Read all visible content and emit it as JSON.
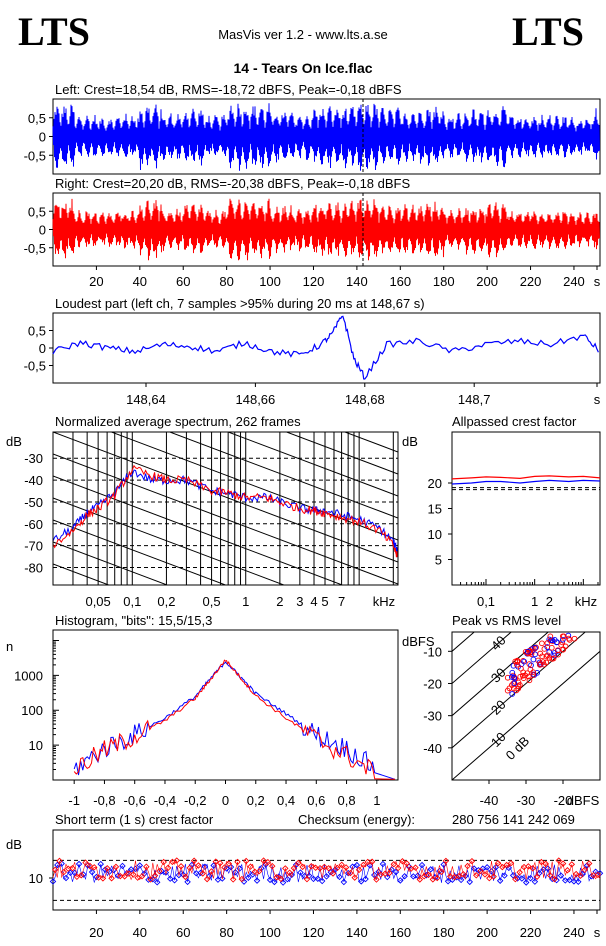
{
  "header": {
    "logo_left": "LTS",
    "logo_right": "LTS",
    "app_title": "MasVis ver 1.2 - www.lts.a.se",
    "file_name": "14 - Tears On Ice.flac"
  },
  "colors": {
    "left": "#0000ff",
    "right": "#ff0000",
    "axis": "#000000"
  },
  "chart_data": [
    {
      "type": "line",
      "id": "left-waveform",
      "title": "Left: Crest=18,54 dB, RMS=-18,72 dBFS, Peak=-0,18 dBFS",
      "crest_db": 18.54,
      "rms_dbfs": -18.72,
      "peak_dbfs": -0.18,
      "ylim": [
        -1,
        1
      ],
      "yticks": [
        "0,5",
        "0",
        "-0,5"
      ],
      "xlim": [
        0,
        252
      ],
      "xunit": "s",
      "envelope_by_10s": [
        0.9,
        0.6,
        0.55,
        0.65,
        0.9,
        0.65,
        0.8,
        0.6,
        0.95,
        0.9,
        0.75,
        0.65,
        0.85,
        0.85,
        0.95,
        0.8,
        0.75,
        0.85,
        0.65,
        0.75,
        0.85,
        0.6,
        0.6,
        0.6,
        0.55,
        0.9
      ]
    },
    {
      "type": "line",
      "id": "right-waveform",
      "title": "Right: Crest=20,20 dB, RMS=-20,38 dBFS, Peak=-0,18 dBFS",
      "crest_db": 20.2,
      "rms_dbfs": -20.38,
      "peak_dbfs": -0.18,
      "ylim": [
        -1,
        1
      ],
      "yticks": [
        "0,5",
        "0",
        "-0,5"
      ],
      "xlim": [
        0,
        252
      ],
      "xunit": "s",
      "xticks": [
        "20",
        "40",
        "60",
        "80",
        "100",
        "120",
        "140",
        "160",
        "180",
        "200",
        "220",
        "240",
        "s"
      ],
      "envelope_by_10s": [
        0.85,
        0.55,
        0.5,
        0.6,
        0.85,
        0.6,
        0.75,
        0.55,
        0.9,
        0.85,
        0.7,
        0.6,
        0.8,
        0.8,
        0.9,
        0.75,
        0.7,
        0.8,
        0.6,
        0.7,
        0.8,
        0.55,
        0.55,
        0.55,
        0.5,
        0.6
      ]
    },
    {
      "type": "line",
      "id": "loudest-part",
      "title": "Loudest part (left  ch, 7 samples >95% during 20 ms at 148,67 s)",
      "ylim": [
        -1,
        1
      ],
      "yticks": [
        "0,5",
        "0",
        "-0,5"
      ],
      "xlim": [
        148.623,
        148.723
      ],
      "xticks": [
        "148,64",
        "148,66",
        "148,68",
        "148,7",
        "s"
      ],
      "x": [
        148.623,
        148.628,
        148.633,
        148.638,
        148.643,
        148.648,
        148.653,
        148.658,
        148.663,
        148.668,
        148.672,
        148.674,
        148.676,
        148.678,
        148.68,
        148.684,
        148.69,
        148.696,
        148.702,
        148.708,
        148.714,
        148.72,
        148.723
      ],
      "y": [
        -0.1,
        0.15,
        0.0,
        -0.1,
        0.1,
        0.05,
        -0.1,
        0.15,
        -0.1,
        -0.2,
        0.1,
        0.4,
        0.95,
        -0.3,
        -0.85,
        0.1,
        0.2,
        -0.1,
        0.1,
        0.2,
        0.1,
        0.35,
        -0.1
      ]
    },
    {
      "type": "line",
      "id": "average-spectrum",
      "title": "Normalized average spectrum, 262 frames",
      "ylabel": "dB",
      "xlabel": "kHz",
      "yticks": [
        "-30",
        "-40",
        "-50",
        "-60",
        "-70",
        "-80"
      ],
      "ylim": [
        -88,
        -18
      ],
      "xscale": "log",
      "xlim": [
        0.02,
        22
      ],
      "xticks": [
        "0,05",
        "0,1",
        "0,2",
        "0,5",
        "1",
        "2",
        "3",
        "4",
        "5",
        "7",
        "kHz"
      ],
      "x": [
        0.02,
        0.03,
        0.04,
        0.05,
        0.07,
        0.1,
        0.15,
        0.2,
        0.3,
        0.5,
        0.7,
        1,
        1.5,
        2,
        3,
        4,
        5,
        7,
        10,
        15,
        20,
        22
      ],
      "series": [
        {
          "name": "",
          "color": "#0000ff",
          "values": [
            -68,
            -62,
            -55,
            -52,
            -46,
            -36,
            -40,
            -40,
            -40,
            -45,
            -46,
            -48,
            -48,
            -50,
            -53,
            -54,
            -54,
            -56,
            -58,
            -62,
            -68,
            -74
          ]
        },
        {
          "name": "",
          "color": "#ff0000",
          "values": [
            -70,
            -63,
            -56,
            -53,
            -47,
            -35,
            -38,
            -40,
            -40,
            -45,
            -46,
            -48,
            -48,
            -50,
            -53,
            -54,
            -55,
            -57,
            -59,
            -63,
            -70,
            -76
          ]
        }
      ]
    },
    {
      "type": "line",
      "id": "allpassed-crest",
      "title": "Allpassed crest factor",
      "ylabel": "dB",
      "xlabel": "kHz",
      "yticks": [
        "20",
        "15",
        "10",
        "5"
      ],
      "ylim": [
        0,
        30
      ],
      "xscale": "log",
      "xlim": [
        0.02,
        22
      ],
      "xticks": [
        "0,1",
        "1",
        "2",
        "kHz"
      ],
      "x": [
        0.02,
        0.05,
        0.1,
        0.2,
        0.5,
        1,
        2,
        5,
        10,
        22
      ],
      "series": [
        {
          "name": "",
          "color": "#0000ff",
          "values": [
            19.8,
            20.0,
            20.3,
            20.3,
            20.0,
            20.3,
            20.5,
            20.3,
            20.5,
            20.4
          ]
        },
        {
          "name": "",
          "color": "#ff0000",
          "values": [
            20.8,
            21.0,
            21.2,
            21.1,
            20.9,
            21.3,
            21.4,
            21.2,
            21.3,
            21.0
          ]
        }
      ],
      "reference_lines": [
        18.7,
        19.1
      ]
    },
    {
      "type": "line",
      "id": "histogram",
      "title": "Histogram, \"bits\": 15,5/15,3",
      "ylabel": "n",
      "yscale": "log",
      "ylim": [
        1,
        20000
      ],
      "yticks": [
        "1000",
        "100",
        "10"
      ],
      "xlim": [
        -1,
        1
      ],
      "xticks": [
        "-1",
        "-0,8",
        "-0,6",
        "-0,4",
        "-0,2",
        "0",
        "0,2",
        "0,4",
        "0,6",
        "0,8",
        "1"
      ],
      "x": [
        -1,
        -0.8,
        -0.6,
        -0.4,
        -0.2,
        -0.1,
        0,
        0.1,
        0.2,
        0.4,
        0.6,
        0.8,
        1
      ],
      "series": [
        {
          "name": "",
          "color": "#0000ff",
          "values": [
            2,
            8,
            20,
            60,
            250,
            800,
            2500,
            900,
            300,
            80,
            20,
            8,
            2
          ]
        },
        {
          "name": "",
          "color": "#ff0000",
          "values": [
            2,
            7,
            18,
            50,
            220,
            750,
            2800,
            850,
            260,
            60,
            15,
            5,
            1.5
          ]
        }
      ]
    },
    {
      "type": "scatter",
      "id": "peak-vs-rms",
      "title": "Peak vs RMS level",
      "ylabel": "dBFS",
      "xlabel": "dBFS",
      "xlim": [
        -50,
        -10
      ],
      "ylim": [
        -50,
        -4
      ],
      "xticks": [
        "-40",
        "-30",
        "-20",
        "dBFS"
      ],
      "yticks": [
        "-10",
        "-20",
        "-30",
        "-40"
      ],
      "diagonal_labels": [
        "40",
        "30",
        "20",
        "10",
        "0 dB"
      ],
      "cluster": {
        "x_range": [
          -35,
          -13
        ],
        "y_range": [
          -27,
          -5
        ]
      }
    },
    {
      "type": "scatter",
      "id": "short-term-crest",
      "title": "Short term (1 s) crest factor",
      "ylabel": "dB",
      "yticks": [
        "10"
      ],
      "ylim": [
        0,
        25
      ],
      "xlim": [
        0,
        252
      ],
      "xticks": [
        "20",
        "40",
        "60",
        "80",
        "100",
        "120",
        "140",
        "160",
        "180",
        "200",
        "220",
        "240",
        "s"
      ],
      "reference_lines": [
        15.5,
        3
      ],
      "series": [
        {
          "name": "",
          "color": "#0000ff",
          "mean": 11.5,
          "spread": 3
        },
        {
          "name": "",
          "color": "#ff0000",
          "mean": 12.5,
          "spread": 3
        }
      ]
    }
  ],
  "checksum": {
    "label": "Checksum (energy):",
    "value": "280 756 141 242 069"
  }
}
